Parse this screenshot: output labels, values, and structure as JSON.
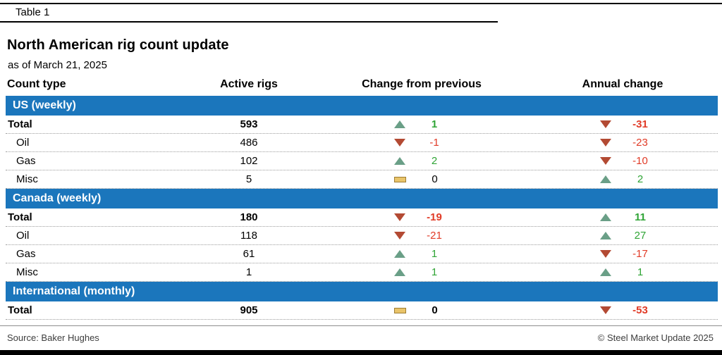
{
  "page": {
    "table_label": "Table 1",
    "title": "North American rig count update",
    "subtitle": "as of March 21, 2025",
    "source": "Source: Baker Hughes",
    "copyright": "© Steel Market Update 2025"
  },
  "columns": {
    "count_type": "Count type",
    "active_rigs": "Active rigs",
    "change_previous": "Change from previous",
    "annual_change": "Annual change"
  },
  "colors": {
    "section_blue": "#1b76bc",
    "up_green": "#6a9f87",
    "down_red": "#b34a33",
    "flat_yellow": "#e9c469",
    "pos_text": "#2fa435",
    "neg_text": "#e13b27"
  },
  "sections": [
    {
      "header": "US (weekly)",
      "rows": [
        {
          "label": "Total",
          "bold": true,
          "active": "593",
          "prev": {
            "dir": "up",
            "value": "1"
          },
          "annual": {
            "dir": "down",
            "value": "-31"
          }
        },
        {
          "label": "Oil",
          "bold": false,
          "active": "486",
          "prev": {
            "dir": "down",
            "value": "-1"
          },
          "annual": {
            "dir": "down",
            "value": "-23"
          }
        },
        {
          "label": "Gas",
          "bold": false,
          "active": "102",
          "prev": {
            "dir": "up",
            "value": "2"
          },
          "annual": {
            "dir": "down",
            "value": "-10"
          }
        },
        {
          "label": "Misc",
          "bold": false,
          "active": "5",
          "prev": {
            "dir": "flat",
            "value": "0"
          },
          "annual": {
            "dir": "up",
            "value": "2"
          }
        }
      ]
    },
    {
      "header": "Canada (weekly)",
      "rows": [
        {
          "label": "Total",
          "bold": true,
          "active": "180",
          "prev": {
            "dir": "down",
            "value": "-19"
          },
          "annual": {
            "dir": "up",
            "value": "11"
          }
        },
        {
          "label": "Oil",
          "bold": false,
          "active": "118",
          "prev": {
            "dir": "down",
            "value": "-21"
          },
          "annual": {
            "dir": "up",
            "value": "27"
          }
        },
        {
          "label": "Gas",
          "bold": false,
          "active": "61",
          "prev": {
            "dir": "up",
            "value": "1"
          },
          "annual": {
            "dir": "down",
            "value": "-17"
          }
        },
        {
          "label": "Misc",
          "bold": false,
          "active": "1",
          "prev": {
            "dir": "up",
            "value": "1"
          },
          "annual": {
            "dir": "up",
            "value": "1"
          }
        }
      ]
    },
    {
      "header": "International (monthly)",
      "rows": [
        {
          "label": "Total",
          "bold": true,
          "active": "905",
          "prev": {
            "dir": "flat",
            "value": "0"
          },
          "annual": {
            "dir": "down",
            "value": "-53"
          }
        }
      ]
    }
  ],
  "chart_data": {
    "type": "table",
    "title": "North American rig count update",
    "subtitle": "as of March 21, 2025",
    "columns": [
      "Count type",
      "Active rigs",
      "Change from previous",
      "Annual change"
    ],
    "rows": [
      [
        "US (weekly)",
        null,
        null,
        null
      ],
      [
        "Total",
        593,
        1,
        -31
      ],
      [
        "Oil",
        486,
        -1,
        -23
      ],
      [
        "Gas",
        102,
        2,
        -10
      ],
      [
        "Misc",
        5,
        0,
        2
      ],
      [
        "Canada (weekly)",
        null,
        null,
        null
      ],
      [
        "Total",
        180,
        -19,
        11
      ],
      [
        "Oil",
        118,
        -21,
        27
      ],
      [
        "Gas",
        61,
        1,
        -17
      ],
      [
        "Misc",
        1,
        1,
        1
      ],
      [
        "International (monthly)",
        null,
        null,
        null
      ],
      [
        "Total",
        905,
        0,
        -53
      ]
    ]
  }
}
